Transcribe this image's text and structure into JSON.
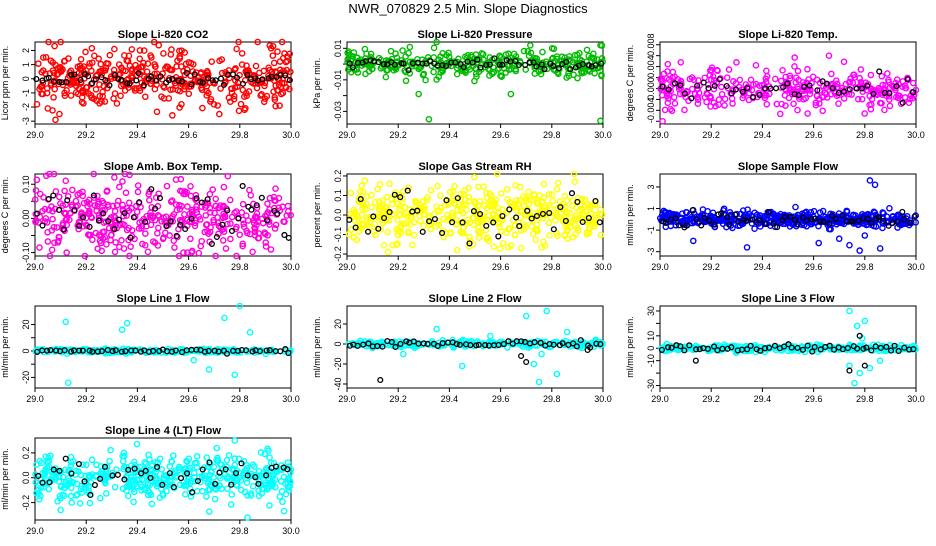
{
  "title": "NWR_070829  2.5 Min. Slope Diagnostics",
  "chart_data": [
    {
      "type": "scatter",
      "title": "Slope Li-820 CO2",
      "ylabel": "Licor ppm per min.",
      "color": "#ff0000",
      "xlim": [
        29.0,
        30.0
      ],
      "ylim": [
        -3.2,
        2.6
      ],
      "yticks": [
        -3,
        -2,
        -1,
        0,
        1,
        2
      ],
      "ytick_labels": [
        "-3",
        "-2",
        "-1",
        "0",
        "1",
        "2"
      ],
      "xticks": [
        29.0,
        29.2,
        29.4,
        29.6,
        29.8,
        30.0
      ],
      "xtick_labels": [
        "29.0",
        "29.2",
        "29.4",
        "29.6",
        "29.8",
        "30.0"
      ],
      "spread": 1.0,
      "n": 430,
      "outliers": [
        [
          29.05,
          -2.1
        ],
        [
          29.08,
          -2.9
        ],
        [
          29.31,
          2.1
        ],
        [
          29.72,
          -2.5
        ],
        [
          29.87,
          2.6
        ],
        [
          29.93,
          2.3
        ]
      ],
      "black": {
        "n": 60,
        "spread": 0.25
      }
    },
    {
      "type": "scatter",
      "title": "Slope Li-820 Pressure",
      "ylabel": "kPa per min.",
      "color": "#00bb00",
      "xlim": [
        29.0,
        30.0
      ],
      "ylim": [
        -0.038,
        0.014
      ],
      "yticks": [
        -0.03,
        -0.02,
        -0.01,
        0,
        0.01
      ],
      "ytick_labels": [
        "-0.03",
        "",
        "-0.01",
        "",
        "0.01"
      ],
      "xticks": [
        29.0,
        29.2,
        29.4,
        29.6,
        29.8,
        30.0
      ],
      "xtick_labels": [
        "29.0",
        "29.2",
        "29.4",
        "29.6",
        "29.8",
        "30.0"
      ],
      "spread": 0.004,
      "n": 330,
      "outliers": [
        [
          29.28,
          -0.019
        ],
        [
          29.32,
          -0.035
        ],
        [
          29.64,
          -0.019
        ],
        [
          29.99,
          -0.036
        ],
        [
          29.99,
          0.012
        ]
      ],
      "black": {
        "n": 60,
        "spread": 0.0015
      }
    },
    {
      "type": "scatter",
      "title": "Slope Li-820 Temp.",
      "ylabel": "degrees C per min.",
      "color": "#ff00ff",
      "xlim": [
        29.0,
        30.0
      ],
      "ylim": [
        -0.0065,
        0.0085
      ],
      "yticks": [
        -0.006,
        -0.004,
        -0.002,
        0,
        0.002,
        0.004,
        0.006,
        0.008
      ],
      "ytick_labels": [
        "",
        "-0.004",
        "",
        "0.000",
        "",
        "0.004",
        "",
        "0.008"
      ],
      "xticks": [
        29.0,
        29.2,
        29.4,
        29.6,
        29.8,
        30.0
      ],
      "xtick_labels": [
        "29.0",
        "29.2",
        "29.4",
        "29.6",
        "29.8",
        "30.0"
      ],
      "spread": 0.0018,
      "n": 330,
      "outliers": [
        [
          29.01,
          -0.006
        ],
        [
          29.66,
          0.006
        ],
        [
          29.05,
          0.003
        ]
      ],
      "black": {
        "n": 45,
        "spread": 0.0009
      }
    },
    {
      "type": "scatter",
      "title": "Slope Amb. Box Temp.",
      "ylabel": "degrees C per min.",
      "color": "#ff00dd",
      "xlim": [
        29.0,
        30.0
      ],
      "ylim": [
        -0.11,
        0.13
      ],
      "yticks": [
        -0.1,
        -0.05,
        0,
        0.05,
        0.1
      ],
      "ytick_labels": [
        "-0.10",
        "",
        "0.00",
        "",
        "0.10"
      ],
      "xticks": [
        29.0,
        29.2,
        29.4,
        29.6,
        29.8,
        30.0
      ],
      "xtick_labels": [
        "29.0",
        "29.2",
        "29.4",
        "29.6",
        "29.8",
        "30.0"
      ],
      "spread": 0.055,
      "n": 430,
      "outliers": [
        [
          29.31,
          0.12
        ],
        [
          29.12,
          0.11
        ],
        [
          29.58,
          -0.1
        ]
      ],
      "black": {
        "n": 50,
        "spread": 0.04
      }
    },
    {
      "type": "scatter",
      "title": "Slope Gas Stream RH",
      "ylabel": "percent per min.",
      "color": "#ffff00",
      "xlim": [
        29.0,
        30.0
      ],
      "ylim": [
        -0.21,
        0.21
      ],
      "yticks": [
        -0.2,
        -0.1,
        0,
        0.1,
        0.2
      ],
      "ytick_labels": [
        "-0.2",
        "-0.1",
        "0.0",
        "0.1",
        "0.2"
      ],
      "xticks": [
        29.0,
        29.2,
        29.4,
        29.6,
        29.8,
        30.0
      ],
      "xtick_labels": [
        "29.0",
        "29.2",
        "29.4",
        "29.6",
        "29.8",
        "30.0"
      ],
      "spread": 0.07,
      "n": 470,
      "outliers": [
        [
          29.16,
          -0.19
        ],
        [
          29.43,
          -0.18
        ],
        [
          29.68,
          -0.17
        ]
      ],
      "black": {
        "n": 45,
        "spread": 0.06
      }
    },
    {
      "type": "scatter",
      "title": "Slope Sample Flow",
      "ylabel": "ml/min per min.",
      "color": "#0000ff",
      "xlim": [
        29.0,
        30.0
      ],
      "ylim": [
        -3.4,
        4.2
      ],
      "yticks": [
        -3,
        -1,
        1,
        3
      ],
      "ytick_labels": [
        "-3",
        "-1",
        "1",
        "3"
      ],
      "xticks": [
        29.0,
        29.2,
        29.4,
        29.6,
        29.8,
        30.0
      ],
      "xtick_labels": [
        "29.0",
        "29.2",
        "29.4",
        "29.6",
        "29.8",
        "30.0"
      ],
      "spread": 0.35,
      "n": 470,
      "outliers": [
        [
          29.13,
          -2.0
        ],
        [
          29.34,
          -2.6
        ],
        [
          29.62,
          -2.2
        ],
        [
          29.7,
          -1.8
        ],
        [
          29.74,
          -2.4
        ],
        [
          29.78,
          -2.9
        ],
        [
          29.82,
          3.6
        ],
        [
          29.84,
          3.2
        ],
        [
          29.86,
          -2.7
        ],
        [
          29.8,
          -1.5
        ]
      ],
      "black": {
        "n": 60,
        "spread": 0.35
      }
    },
    {
      "type": "scatter",
      "title": "Slope Line 1 Flow",
      "ylabel": "ml/min per min.",
      "color": "#00ffff",
      "xlim": [
        29.0,
        30.0
      ],
      "ylim": [
        -28,
        34
      ],
      "yticks": [
        -20,
        -10,
        0,
        10,
        20
      ],
      "ytick_labels": [
        "-20",
        "",
        "0",
        "",
        "20"
      ],
      "xticks": [
        29.0,
        29.2,
        29.4,
        29.6,
        29.8,
        30.0
      ],
      "xtick_labels": [
        "29.0",
        "29.2",
        "29.4",
        "29.6",
        "29.8",
        "30.0"
      ],
      "spread": 0.8,
      "n": 240,
      "outliers": [
        [
          29.12,
          22
        ],
        [
          29.13,
          -24
        ],
        [
          29.34,
          16
        ],
        [
          29.36,
          21
        ],
        [
          29.68,
          -14
        ],
        [
          29.74,
          25
        ],
        [
          29.78,
          -18
        ],
        [
          29.8,
          34
        ],
        [
          29.84,
          14
        ],
        [
          29.62,
          -7
        ]
      ],
      "black": {
        "n": 55,
        "spread": 0.6
      }
    },
    {
      "type": "scatter",
      "title": "Slope Line 2 Flow",
      "ylabel": "ml/min per min.",
      "color": "#00ffff",
      "xlim": [
        29.0,
        30.0
      ],
      "ylim": [
        -44,
        38
      ],
      "yticks": [
        -40,
        -20,
        0,
        20
      ],
      "ytick_labels": [
        "-40",
        "-20",
        "0",
        "20"
      ],
      "xticks": [
        29.0,
        29.2,
        29.4,
        29.6,
        29.8,
        30.0
      ],
      "xtick_labels": [
        "29.0",
        "29.2",
        "29.4",
        "29.6",
        "29.8",
        "30.0"
      ],
      "spread": 1.5,
      "n": 240,
      "outliers": [
        [
          29.22,
          -10
        ],
        [
          29.35,
          15
        ],
        [
          29.45,
          -22
        ],
        [
          29.56,
          8
        ],
        [
          29.7,
          28
        ],
        [
          29.73,
          -20
        ],
        [
          29.75,
          -38
        ],
        [
          29.78,
          33
        ],
        [
          29.76,
          -10
        ],
        [
          29.82,
          -30
        ],
        [
          29.86,
          12
        ]
      ],
      "black": {
        "n": 55,
        "spread": 1.5,
        "outliers": [
          [
            29.13,
            -36
          ],
          [
            29.68,
            -12
          ],
          [
            29.7,
            -18
          ],
          [
            29.94,
            -6
          ]
        ]
      }
    },
    {
      "type": "scatter",
      "title": "Slope Line 3 Flow",
      "ylabel": "ml/min per min.",
      "color": "#00ffff",
      "xlim": [
        29.0,
        30.0
      ],
      "ylim": [
        -32,
        34
      ],
      "yticks": [
        -30,
        -20,
        -10,
        0,
        10,
        20,
        30
      ],
      "ytick_labels": [
        "-30",
        "",
        "-10",
        "0",
        "10",
        "",
        "30"
      ],
      "xticks": [
        29.0,
        29.2,
        29.4,
        29.6,
        29.8,
        30.0
      ],
      "xtick_labels": [
        "29.0",
        "29.2",
        "29.4",
        "29.6",
        "29.8",
        "30.0"
      ],
      "spread": 1.2,
      "n": 300,
      "outliers": [
        [
          29.74,
          30
        ],
        [
          29.76,
          -28
        ],
        [
          29.78,
          -20
        ],
        [
          29.8,
          22
        ],
        [
          29.77,
          18
        ],
        [
          29.82,
          -16
        ],
        [
          29.86,
          -10
        ],
        [
          29.74,
          -14
        ],
        [
          29.79,
          8
        ]
      ],
      "black": {
        "n": 55,
        "spread": 1.2,
        "outliers": [
          [
            29.74,
            -18
          ],
          [
            29.8,
            -14
          ],
          [
            29.78,
            10
          ],
          [
            29.14,
            -10
          ]
        ]
      }
    },
    {
      "type": "scatter",
      "title": "Slope Line 4 (LT) Flow",
      "ylabel": "ml/min per min.",
      "color": "#00ffff",
      "xlim": [
        29.0,
        30.0
      ],
      "ylim": [
        -0.34,
        0.32
      ],
      "yticks": [
        -0.2,
        0,
        0.2
      ],
      "ytick_labels": [
        "-0.2",
        "0.0",
        "0.2"
      ],
      "xticks": [
        29.0,
        29.2,
        29.4,
        29.6,
        29.8,
        30.0
      ],
      "xtick_labels": [
        "29.0",
        "29.2",
        "29.4",
        "29.6",
        "29.8",
        "30.0"
      ],
      "spread": 0.09,
      "n": 470,
      "outliers": [
        [
          29.78,
          0.3
        ],
        [
          29.83,
          -0.32
        ],
        [
          29.1,
          -0.26
        ]
      ],
      "black": {
        "n": 45,
        "spread": 0.07
      }
    }
  ]
}
